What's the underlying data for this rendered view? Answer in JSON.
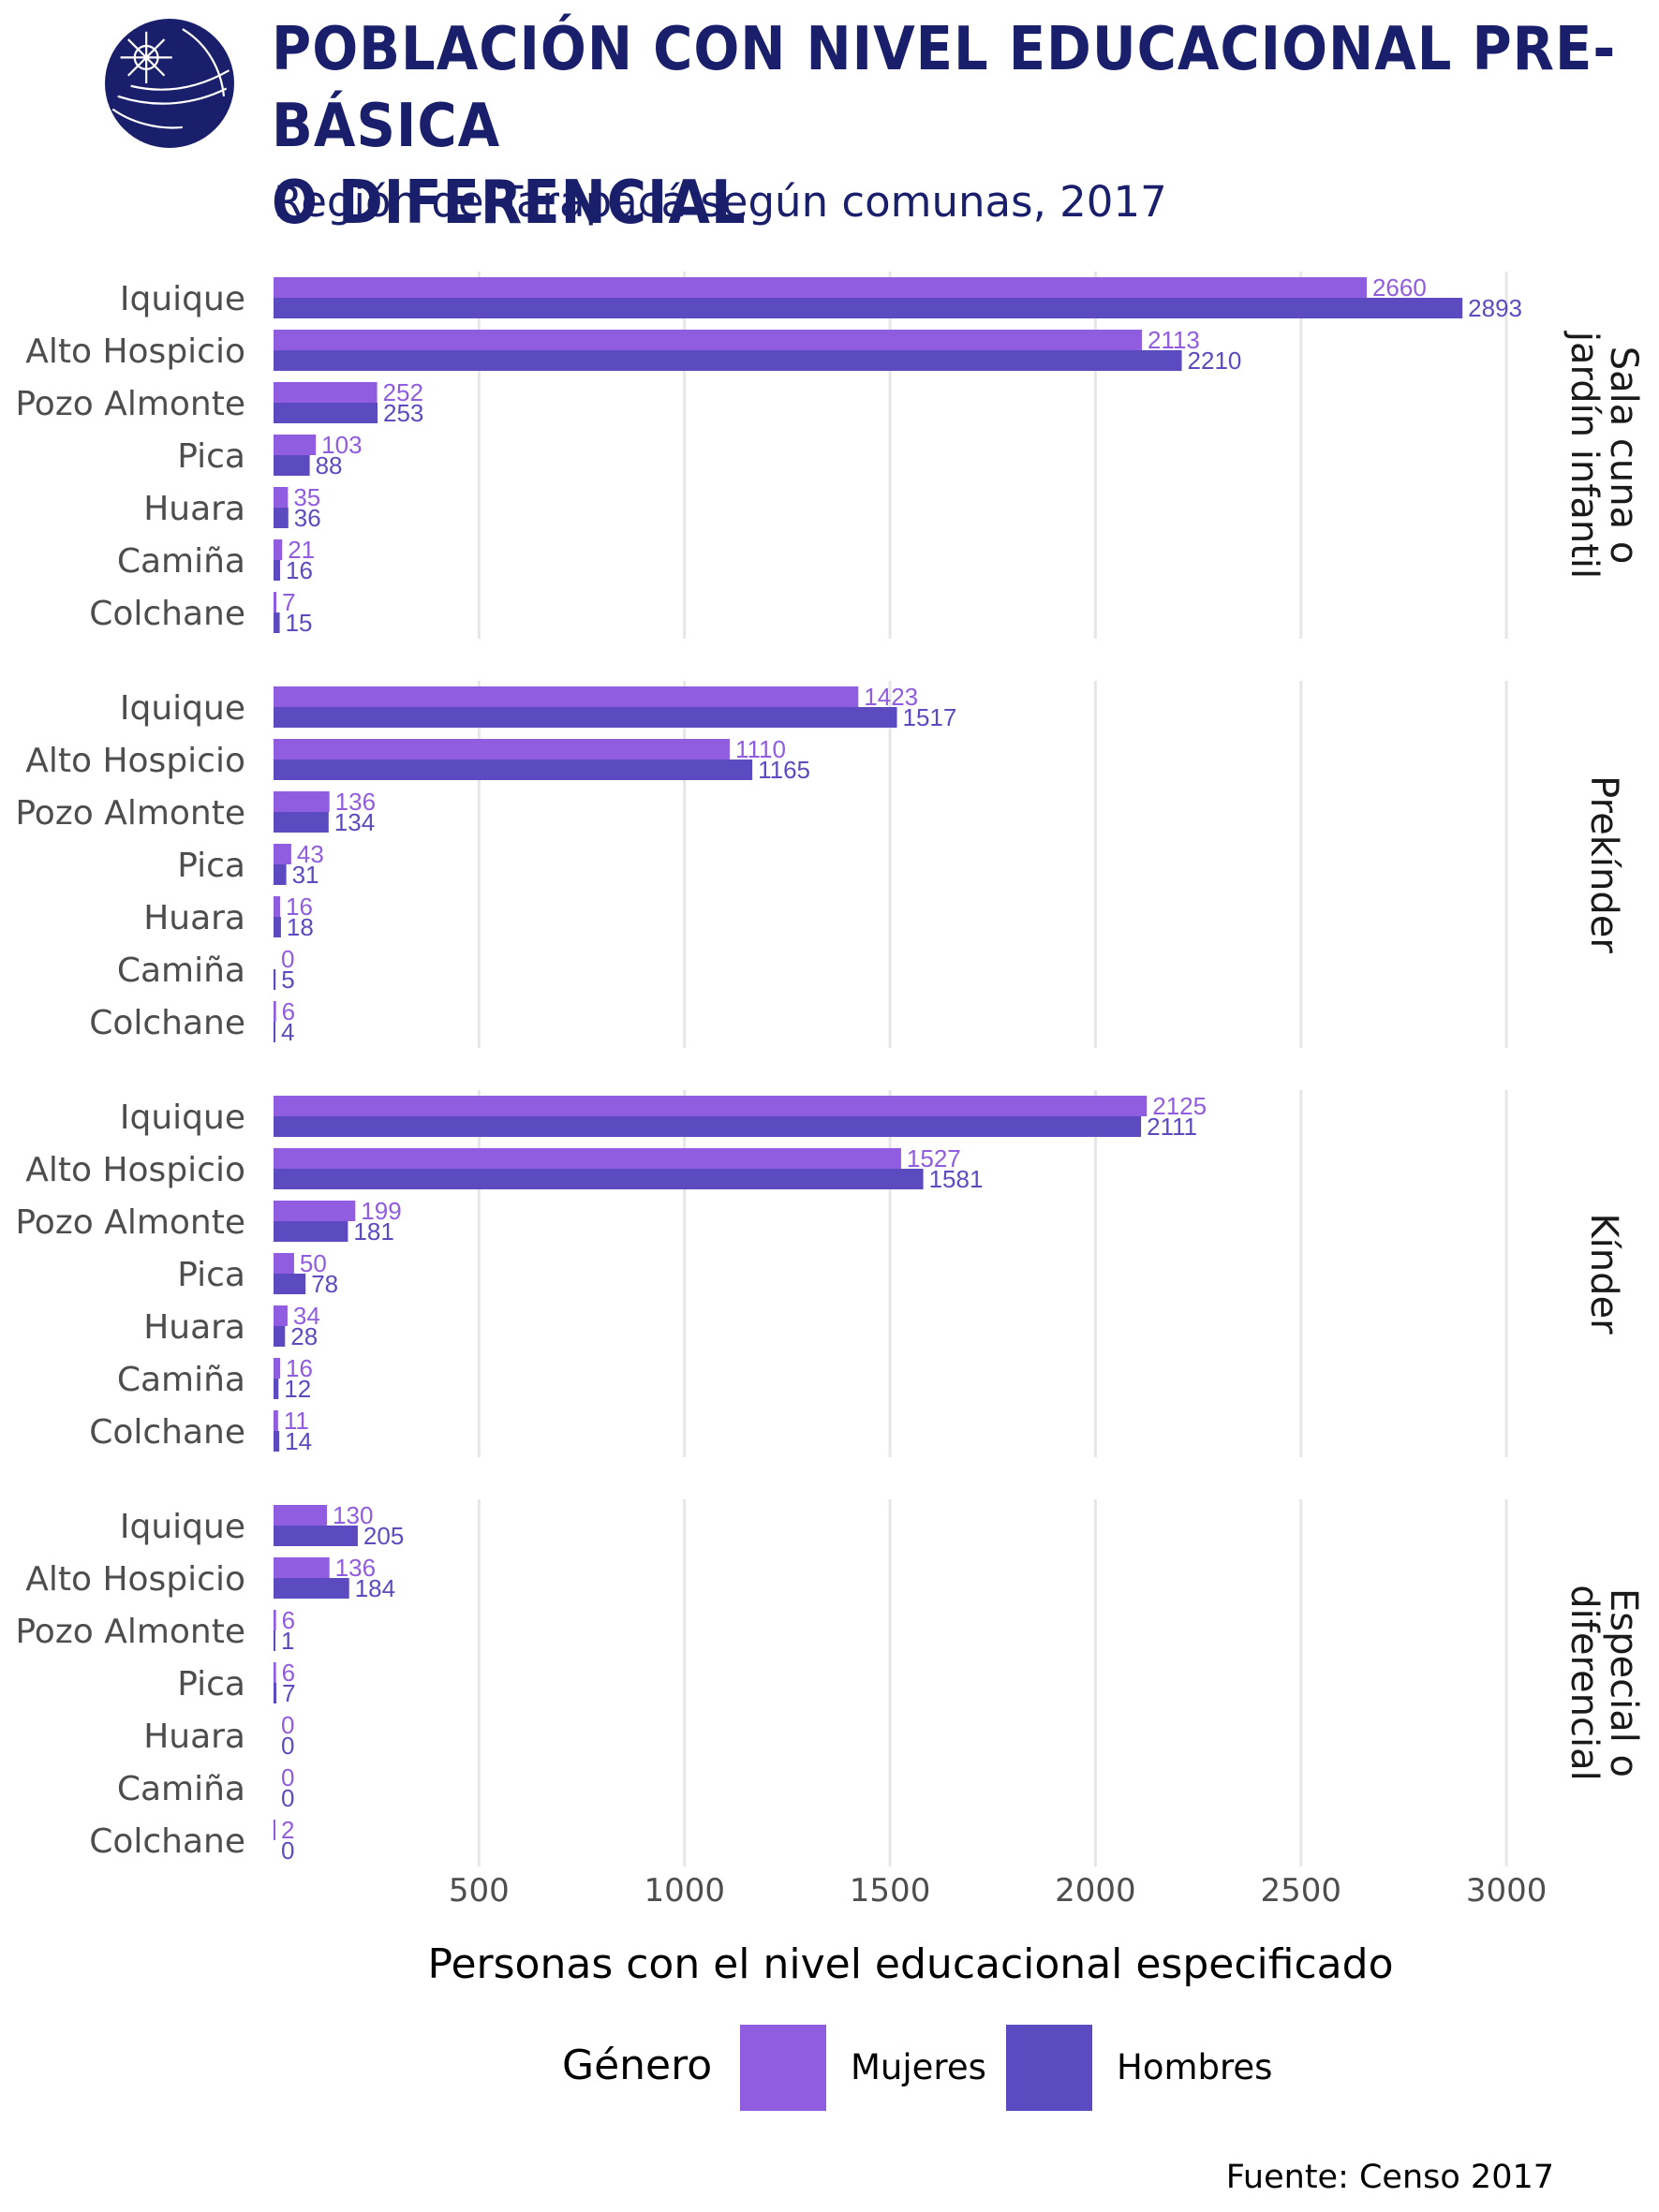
{
  "header": {
    "title_line1": "POBLACIÓN CON NIVEL EDUCACIONAL PRE-BÁSICA",
    "title_line2": "O DIFERENCIAL",
    "subtitle": "Región de Tarapacá según comunas, 2017"
  },
  "legend": {
    "title": "Género",
    "items": [
      {
        "label": "Mujeres",
        "color": "#905ce0"
      },
      {
        "label": "Hombres",
        "color": "#5c4bc0"
      }
    ]
  },
  "source": "Fuente: Censo 2017",
  "colors": {
    "mujeres": "#905ce0",
    "hombres": "#5c4bc0",
    "title": "#1a1f6b",
    "grid": "#e6e6e6"
  },
  "chart_data": {
    "type": "bar",
    "orientation": "horizontal",
    "xlabel": "Personas con el nivel educacional especificado",
    "xticks": [
      500,
      1000,
      1500,
      2000,
      2500,
      3000
    ],
    "xlim": [
      0,
      3100
    ],
    "grid": true,
    "legend_position": "bottom",
    "categories": [
      "Iquique",
      "Alto Hospicio",
      "Pozo Almonte",
      "Pica",
      "Huara",
      "Camiña",
      "Colchane"
    ],
    "facets": [
      {
        "label_lines": [
          "Sala cuna o",
          "jardín infantil"
        ],
        "series": [
          {
            "name": "Mujeres",
            "values": [
              2660,
              2113,
              252,
              103,
              35,
              21,
              7
            ]
          },
          {
            "name": "Hombres",
            "values": [
              2893,
              2210,
              253,
              88,
              36,
              16,
              15
            ]
          }
        ]
      },
      {
        "label_lines": [
          "Prekínder"
        ],
        "series": [
          {
            "name": "Mujeres",
            "values": [
              1423,
              1110,
              136,
              43,
              16,
              0,
              6
            ]
          },
          {
            "name": "Hombres",
            "values": [
              1517,
              1165,
              134,
              31,
              18,
              5,
              4
            ]
          }
        ]
      },
      {
        "label_lines": [
          "Kínder"
        ],
        "series": [
          {
            "name": "Mujeres",
            "values": [
              2125,
              1527,
              199,
              50,
              34,
              16,
              11
            ]
          },
          {
            "name": "Hombres",
            "values": [
              2111,
              1581,
              181,
              78,
              28,
              12,
              14
            ]
          }
        ]
      },
      {
        "label_lines": [
          "Especial o",
          "diferencial"
        ],
        "series": [
          {
            "name": "Mujeres",
            "values": [
              130,
              136,
              6,
              6,
              0,
              0,
              2
            ]
          },
          {
            "name": "Hombres",
            "values": [
              205,
              184,
              1,
              7,
              0,
              0,
              0
            ]
          }
        ]
      }
    ]
  }
}
